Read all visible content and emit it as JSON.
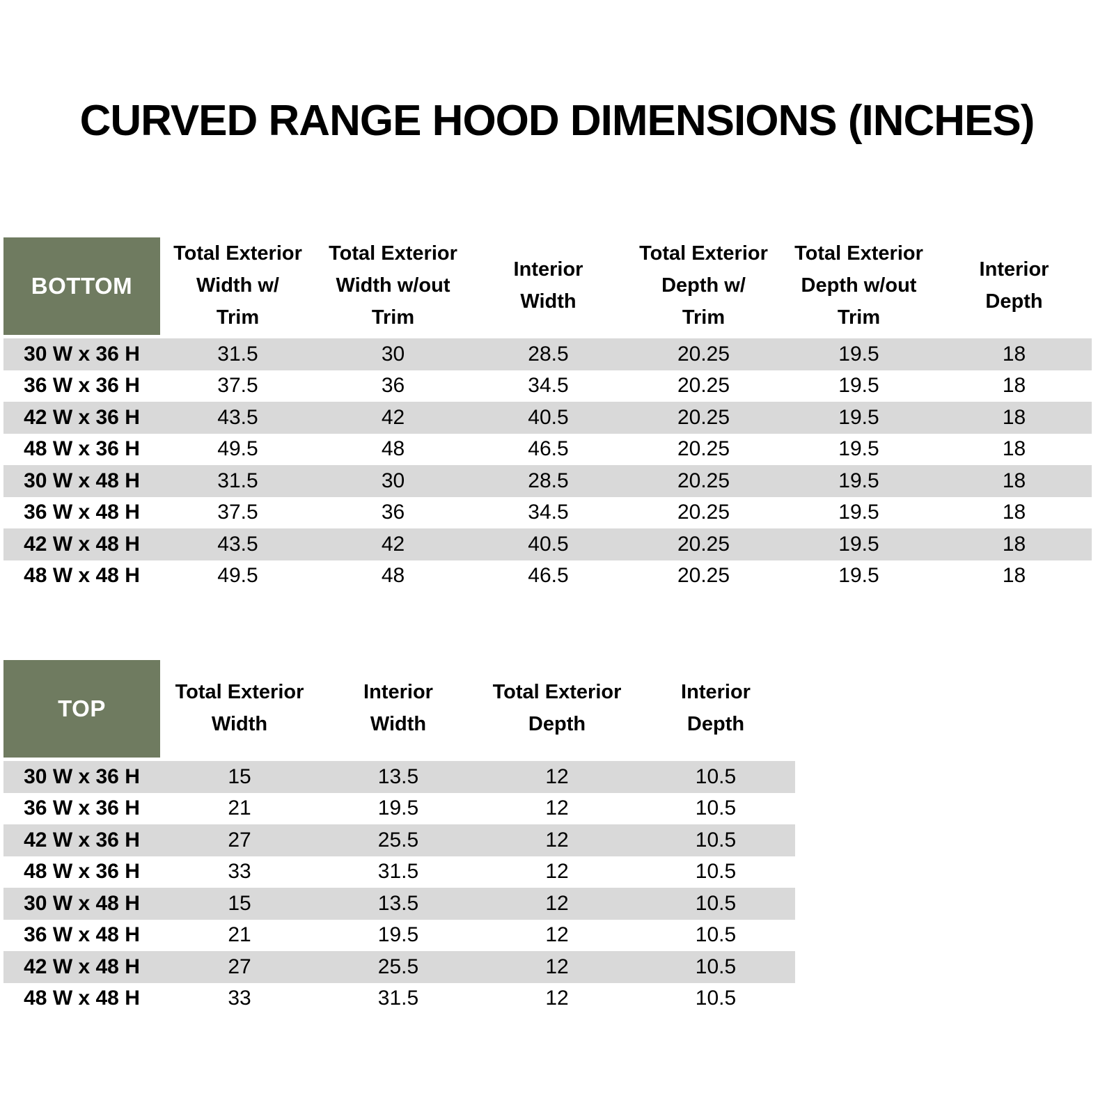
{
  "title": "CURVED RANGE HOOD DIMENSIONS (INCHES)",
  "colors": {
    "header_green": "#6F7B60",
    "stripe_gray": "#D9D9D9",
    "text_black": "#000000",
    "corner_text_white": "#FFFFFF"
  },
  "bottom_table": {
    "corner_label": "BOTTOM",
    "columns": [
      "Total Exterior\nWidth w/\nTrim",
      "Total Exterior\nWidth w/out\nTrim",
      "Interior\nWidth",
      "Total Exterior\nDepth w/\nTrim",
      "Total Exterior\nDepth w/out\nTrim",
      "Interior\nDepth"
    ],
    "rows": [
      {
        "label": "30 W x 36 H",
        "values": [
          "31.5",
          "30",
          "28.5",
          "20.25",
          "19.5",
          "18"
        ]
      },
      {
        "label": "36 W x 36 H",
        "values": [
          "37.5",
          "36",
          "34.5",
          "20.25",
          "19.5",
          "18"
        ]
      },
      {
        "label": "42 W x 36 H",
        "values": [
          "43.5",
          "42",
          "40.5",
          "20.25",
          "19.5",
          "18"
        ]
      },
      {
        "label": "48 W x 36 H",
        "values": [
          "49.5",
          "48",
          "46.5",
          "20.25",
          "19.5",
          "18"
        ]
      },
      {
        "label": "30 W x 48 H",
        "values": [
          "31.5",
          "30",
          "28.5",
          "20.25",
          "19.5",
          "18"
        ]
      },
      {
        "label": "36 W x 48 H",
        "values": [
          "37.5",
          "36",
          "34.5",
          "20.25",
          "19.5",
          "18"
        ]
      },
      {
        "label": "42 W x 48 H",
        "values": [
          "43.5",
          "42",
          "40.5",
          "20.25",
          "19.5",
          "18"
        ]
      },
      {
        "label": "48 W x 48 H",
        "values": [
          "49.5",
          "48",
          "46.5",
          "20.25",
          "19.5",
          "18"
        ]
      }
    ]
  },
  "top_table": {
    "corner_label": "TOP",
    "columns": [
      "Total Exterior\nWidth",
      "Interior\nWidth",
      "Total Exterior\nDepth",
      "Interior\nDepth"
    ],
    "rows": [
      {
        "label": "30 W x 36 H",
        "values": [
          "15",
          "13.5",
          "12",
          "10.5"
        ]
      },
      {
        "label": "36 W x 36 H",
        "values": [
          "21",
          "19.5",
          "12",
          "10.5"
        ]
      },
      {
        "label": "42 W x 36 H",
        "values": [
          "27",
          "25.5",
          "12",
          "10.5"
        ]
      },
      {
        "label": "48 W x 36 H",
        "values": [
          "33",
          "31.5",
          "12",
          "10.5"
        ]
      },
      {
        "label": "30 W x 48 H",
        "values": [
          "15",
          "13.5",
          "12",
          "10.5"
        ]
      },
      {
        "label": "36 W x 48 H",
        "values": [
          "21",
          "19.5",
          "12",
          "10.5"
        ]
      },
      {
        "label": "42 W x 48 H",
        "values": [
          "27",
          "25.5",
          "12",
          "10.5"
        ]
      },
      {
        "label": "48 W x 48 H",
        "values": [
          "33",
          "31.5",
          "12",
          "10.5"
        ]
      }
    ]
  }
}
